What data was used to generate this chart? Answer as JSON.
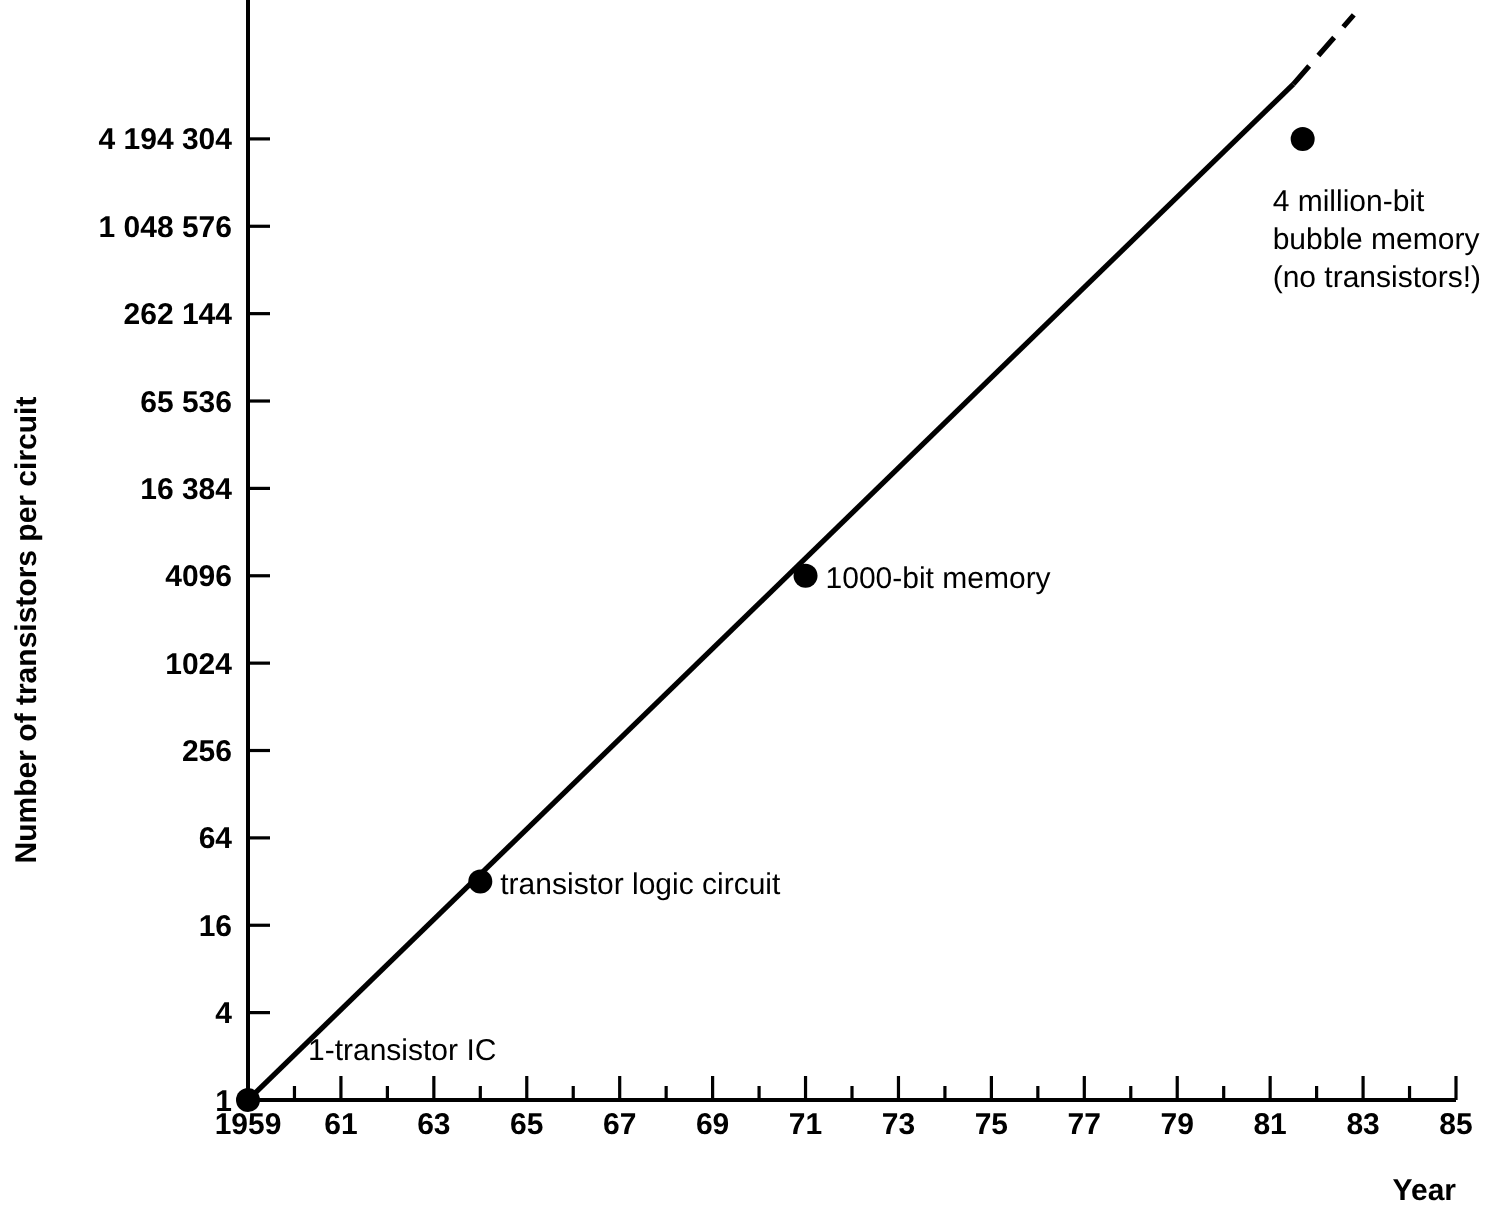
{
  "chart_data": {
    "type": "scatter",
    "xlabel": "Year",
    "ylabel": "Number of transistors per circuit",
    "log": "y",
    "xlim": [
      1959,
      1985
    ],
    "ylim": [
      1,
      38000000
    ],
    "xticks": [
      {
        "value": 1959,
        "label": "1959"
      },
      {
        "value": 1960,
        "label": null
      },
      {
        "value": 1961,
        "label": "61"
      },
      {
        "value": 1962,
        "label": null
      },
      {
        "value": 1963,
        "label": "63"
      },
      {
        "value": 1964,
        "label": null
      },
      {
        "value": 1965,
        "label": "65"
      },
      {
        "value": 1966,
        "label": null
      },
      {
        "value": 1967,
        "label": "67"
      },
      {
        "value": 1968,
        "label": null
      },
      {
        "value": 1969,
        "label": "69"
      },
      {
        "value": 1970,
        "label": null
      },
      {
        "value": 1971,
        "label": "71"
      },
      {
        "value": 1972,
        "label": null
      },
      {
        "value": 1973,
        "label": "73"
      },
      {
        "value": 1974,
        "label": null
      },
      {
        "value": 1975,
        "label": "75"
      },
      {
        "value": 1976,
        "label": null
      },
      {
        "value": 1977,
        "label": "77"
      },
      {
        "value": 1978,
        "label": null
      },
      {
        "value": 1979,
        "label": "79"
      },
      {
        "value": 1980,
        "label": null
      },
      {
        "value": 1981,
        "label": "81"
      },
      {
        "value": 1982,
        "label": null
      },
      {
        "value": 1983,
        "label": "83"
      },
      {
        "value": 1984,
        "label": null
      },
      {
        "value": 1985,
        "label": "85"
      }
    ],
    "yticks": [
      1,
      4,
      16,
      64,
      256,
      1024,
      4096,
      {
        "value": 16384,
        "label": "16 384"
      },
      {
        "value": 65536,
        "label": "65 536"
      },
      {
        "value": 262144,
        "label": "262 144"
      },
      {
        "value": 1048576,
        "label": "1 048 576"
      },
      {
        "value": 4194304,
        "label": "4 194 304"
      }
    ],
    "grid": false,
    "series": [
      {
        "type": "line",
        "color": "#000000",
        "line_style": "solid",
        "x": [
          1959,
          1981.5
        ],
        "values": [
          1,
          10000000
        ]
      },
      {
        "type": "line",
        "color": "#000000",
        "line_style": "dashed",
        "x": [
          1981.5,
          1982.8
        ],
        "values": [
          10000000,
          30000000
        ]
      },
      {
        "color": "#000000",
        "marker": "circle",
        "x": [
          1959,
          1964,
          1971,
          1981.7
        ],
        "values": [
          1,
          32,
          4096,
          4194304
        ]
      }
    ],
    "annotations": [
      {
        "text": "1-transistor IC",
        "x": 1959,
        "y": 1
      },
      {
        "text": "transistor logic circuit",
        "x": 1964,
        "y": 32
      },
      {
        "text": "1000-bit memory",
        "x": 1971,
        "y": 4096
      },
      {
        "text": "4 million-bit\nbubble memory\n(no transistors!)",
        "x": 1981.7,
        "y": 4194304
      }
    ]
  }
}
